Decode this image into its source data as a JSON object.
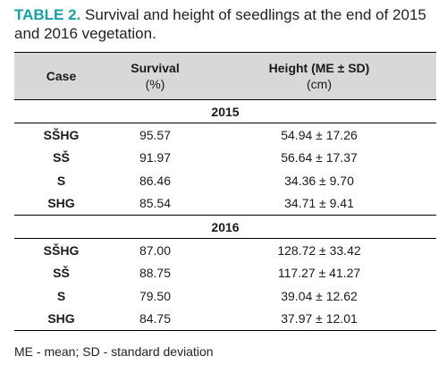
{
  "caption": {
    "label": "TABLE 2.",
    "text": " Survival and height of seedlings at the end of 2015 and 2016 vegetation."
  },
  "table": {
    "headers": {
      "case": "Case",
      "survival": "Survival",
      "survival_unit": "(%)",
      "height": "Height (ME ± SD)",
      "height_unit": "(cm)"
    },
    "groups": [
      {
        "year": "2015",
        "rows": [
          {
            "case": "SŠHG",
            "survival": "95.57",
            "height": "54.94 ± 17.26"
          },
          {
            "case": "SŠ",
            "survival": "91.97",
            "height": "56.64 ± 17.37"
          },
          {
            "case": "S",
            "survival": "86.46",
            "height": "34.36 ± 9.70"
          },
          {
            "case": "SHG",
            "survival": "85.54",
            "height": "34.71 ± 9.41"
          }
        ]
      },
      {
        "year": "2016",
        "rows": [
          {
            "case": "SŠHG",
            "survival": "87.00",
            "height": "128.72 ± 33.42"
          },
          {
            "case": "SŠ",
            "survival": "88.75",
            "height": "117.27 ± 41.27"
          },
          {
            "case": "S",
            "survival": "79.50",
            "height": "39.04 ± 12.62"
          },
          {
            "case": "SHG",
            "survival": "84.75",
            "height": "37.97 ± 12.01"
          }
        ]
      }
    ]
  },
  "footnote": "ME - mean; SD - standard deviation"
}
